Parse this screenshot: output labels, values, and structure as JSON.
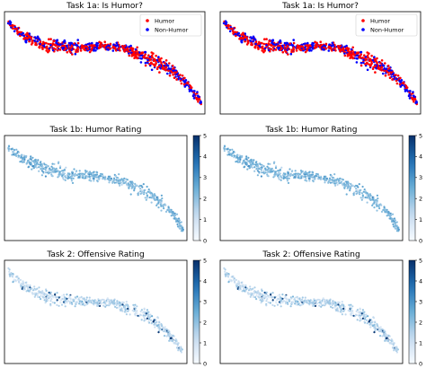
{
  "chart_data": [
    {
      "panel": "top-left",
      "type": "scatter",
      "title": "Task 1a: Is Humor?",
      "xlabel": "",
      "ylabel": "",
      "axis_ticks": false,
      "legend": {
        "placement": "top-right",
        "entries": [
          {
            "label": "Humor",
            "color": "#ff0000"
          },
          {
            "label": "Non-Humor",
            "color": "#0000ff"
          }
        ]
      },
      "series": [
        {
          "name": "Humor",
          "color": "#ff0000"
        },
        {
          "name": "Non-Humor",
          "color": "#0000ff"
        }
      ],
      "trend": {
        "x": [
          0.0,
          0.08,
          0.2,
          0.35,
          0.5,
          0.6,
          0.68,
          0.78,
          0.88,
          0.95,
          1.0
        ],
        "y": [
          0.92,
          0.78,
          0.68,
          0.66,
          0.68,
          0.66,
          0.58,
          0.5,
          0.38,
          0.22,
          0.08
        ]
      },
      "n_points": 700
    },
    {
      "panel": "top-right",
      "type": "scatter",
      "title": "Task 1a: Is Humor?",
      "xlabel": "",
      "ylabel": "",
      "axis_ticks": false,
      "legend": {
        "placement": "top-right",
        "entries": [
          {
            "label": "Humor",
            "color": "#ff0000"
          },
          {
            "label": "Non-Humor",
            "color": "#0000ff"
          }
        ]
      },
      "series": [
        {
          "name": "Humor",
          "color": "#ff0000"
        },
        {
          "name": "Non-Humor",
          "color": "#0000ff"
        }
      ],
      "trend": {
        "x": [
          0.0,
          0.08,
          0.2,
          0.35,
          0.5,
          0.6,
          0.68,
          0.78,
          0.88,
          0.95,
          1.0
        ],
        "y": [
          0.92,
          0.78,
          0.68,
          0.66,
          0.68,
          0.66,
          0.58,
          0.5,
          0.38,
          0.22,
          0.08
        ]
      },
      "n_points": 700
    },
    {
      "panel": "middle-left",
      "type": "scatter",
      "title": "Task 1b: Humor Rating",
      "xlabel": "",
      "ylabel": "",
      "axis_ticks": false,
      "colorbar": {
        "cmap": "Blues",
        "range": [
          0,
          5
        ],
        "ticks": [
          "0",
          "1",
          "2",
          "3",
          "4",
          "5"
        ]
      },
      "trend": {
        "x": [
          0.0,
          0.08,
          0.2,
          0.35,
          0.5,
          0.6,
          0.68,
          0.78,
          0.88,
          0.95,
          1.0
        ],
        "y": [
          0.92,
          0.8,
          0.7,
          0.64,
          0.62,
          0.6,
          0.54,
          0.46,
          0.34,
          0.2,
          0.08
        ]
      },
      "n_points": 600
    },
    {
      "panel": "middle-right",
      "type": "scatter",
      "title": "Task 1b: Humor Rating",
      "xlabel": "",
      "ylabel": "",
      "axis_ticks": false,
      "colorbar": {
        "cmap": "Blues",
        "range": [
          0,
          5
        ],
        "ticks": [
          "0",
          "1",
          "2",
          "3",
          "4",
          "5"
        ]
      },
      "trend": {
        "x": [
          0.0,
          0.08,
          0.2,
          0.35,
          0.5,
          0.6,
          0.68,
          0.78,
          0.88,
          0.95,
          1.0
        ],
        "y": [
          0.92,
          0.8,
          0.7,
          0.64,
          0.62,
          0.6,
          0.54,
          0.46,
          0.34,
          0.2,
          0.08
        ]
      },
      "n_points": 600
    },
    {
      "panel": "bottom-left",
      "type": "scatter",
      "title": "Task 2: Offensive Rating",
      "xlabel": "",
      "ylabel": "",
      "axis_ticks": false,
      "colorbar": {
        "cmap": "Blues",
        "range": [
          0,
          5
        ],
        "ticks": [
          "0",
          "1",
          "2",
          "3",
          "4",
          "5"
        ]
      },
      "trend": {
        "x": [
          0.0,
          0.08,
          0.2,
          0.35,
          0.5,
          0.6,
          0.68,
          0.78,
          0.88,
          0.95,
          1.0
        ],
        "y": [
          0.92,
          0.78,
          0.66,
          0.62,
          0.6,
          0.6,
          0.54,
          0.46,
          0.34,
          0.2,
          0.06
        ]
      },
      "n_points": 600
    },
    {
      "panel": "bottom-right",
      "type": "scatter",
      "title": "Task 2: Offensive Rating",
      "xlabel": "",
      "ylabel": "",
      "axis_ticks": false,
      "colorbar": {
        "cmap": "Blues",
        "range": [
          0,
          5
        ],
        "ticks": [
          "0",
          "1",
          "2",
          "3",
          "4",
          "5"
        ]
      },
      "trend": {
        "x": [
          0.0,
          0.08,
          0.2,
          0.35,
          0.5,
          0.6,
          0.68,
          0.78,
          0.88,
          0.95,
          1.0
        ],
        "y": [
          0.92,
          0.78,
          0.66,
          0.62,
          0.6,
          0.6,
          0.54,
          0.46,
          0.34,
          0.2,
          0.06
        ]
      },
      "n_points": 600
    }
  ]
}
